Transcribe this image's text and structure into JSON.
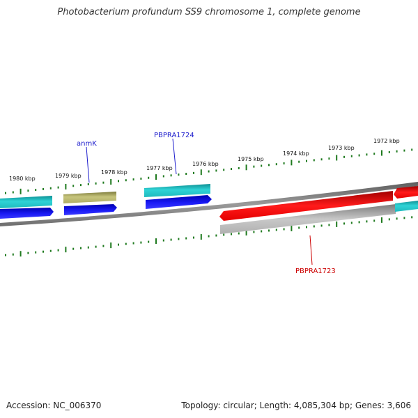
{
  "title": "Photobacterium profundum SS9 chromosome 1, complete genome",
  "footer": {
    "accession": "Accession: NC_006370",
    "info": "Topology: circular; Length: 4,085,304 bp; Genes: 3,606"
  },
  "colors": {
    "backbone": "#808080",
    "ticks": "#1f7a1f",
    "cyan": "#21c4c8",
    "blue": "#1010ee",
    "olive": "#b7b56b",
    "red": "#ee1111",
    "gray": "#b8b8b8",
    "label_blue": "#1a1acc",
    "label_red": "#cc0000"
  },
  "tick_labels": [
    "1980 kbp",
    "1979 kbp",
    "1978 kbp",
    "1977 kbp",
    "1976 kbp",
    "1975 kbp",
    "1974 kbp",
    "1973 kbp",
    "1972 kbp"
  ],
  "gene_labels": {
    "anmK": "anmK",
    "PBPRA1724": "PBPRA1724",
    "PBPRA1723": "PBPRA1723"
  }
}
